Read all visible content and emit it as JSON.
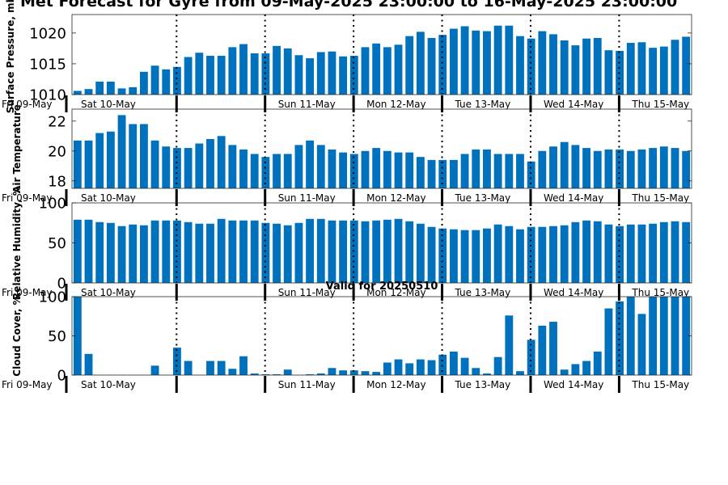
{
  "title": "Met Forecast for Gyre from 09-May-2025 23:00:00 to 16-May-2025 23:00:00",
  "bar_color": "#0072BD",
  "chart_data": [
    {
      "type": "bar",
      "ylabel": "Surface Pressure, mb",
      "ylim": [
        1010,
        1023
      ],
      "yticks": [
        1010,
        1015,
        1020
      ],
      "values": [
        1010.6,
        1010.9,
        1012.1,
        1012.1,
        1011.0,
        1011.2,
        1013.7,
        1014.7,
        1014.1,
        1014.5,
        1016.1,
        1016.8,
        1016.3,
        1016.3,
        1017.7,
        1018.2,
        1016.7,
        1016.7,
        1017.9,
        1017.5,
        1016.4,
        1015.9,
        1016.9,
        1017.0,
        1016.2,
        1016.3,
        1017.7,
        1018.3,
        1017.7,
        1018.1,
        1019.5,
        1020.2,
        1019.2,
        1019.7,
        1020.7,
        1021.1,
        1020.4,
        1020.3,
        1021.2,
        1021.2,
        1019.5,
        1019.1,
        1020.3,
        1019.8,
        1018.8,
        1018.0,
        1019.1,
        1019.2,
        1017.2,
        1017.1,
        1018.4,
        1018.5,
        1017.6,
        1017.8,
        1018.9,
        1019.4
      ],
      "day_labels": [
        "Fri 09-May",
        "Sat 10-May",
        "Sun 11-May",
        "Mon 12-May",
        "Tue 13-May",
        "Wed 14-May",
        "Thu 15-May"
      ]
    },
    {
      "type": "bar",
      "ylabel": "Air Temperature",
      "ylim": [
        17.5,
        22.8
      ],
      "yticks": [
        18,
        20,
        22
      ],
      "values": [
        20.7,
        20.7,
        21.2,
        21.3,
        22.4,
        21.8,
        21.8,
        20.7,
        20.3,
        20.2,
        20.2,
        20.5,
        20.8,
        21.0,
        20.4,
        20.1,
        19.8,
        19.6,
        19.8,
        19.8,
        20.4,
        20.7,
        20.4,
        20.1,
        19.9,
        19.8,
        20.0,
        20.2,
        20.0,
        19.9,
        19.9,
        19.6,
        19.4,
        19.4,
        19.4,
        19.8,
        20.1,
        20.1,
        19.8,
        19.8,
        19.8,
        19.3,
        20.0,
        20.3,
        20.6,
        20.4,
        20.2,
        20.0,
        20.1,
        20.1,
        20.0,
        20.1,
        20.2,
        20.3,
        20.2,
        20.0
      ],
      "day_labels": [
        "Fri 09-May",
        "Sat 10-May",
        "Sun 11-May",
        "Mon 12-May",
        "Tue 13-May",
        "Wed 14-May",
        "Thu 15-May"
      ]
    },
    {
      "type": "bar",
      "ylabel": "Relative Humidity, %",
      "ylim": [
        0,
        100
      ],
      "yticks": [
        0,
        50,
        100
      ],
      "values": [
        79,
        79,
        76,
        75,
        71,
        73,
        72,
        78,
        78,
        78,
        76,
        74,
        74,
        80,
        78,
        78,
        78,
        75,
        74,
        72,
        75,
        80,
        80,
        78,
        78,
        78,
        77,
        78,
        79,
        80,
        77,
        74,
        70,
        68,
        67,
        66,
        66,
        68,
        73,
        71,
        67,
        70,
        70,
        71,
        72,
        76,
        78,
        77,
        73,
        71,
        73,
        73,
        74,
        76,
        77,
        76
      ],
      "day_labels": [
        "Fri 09-May",
        "Sat 10-May",
        "Sun 11-May",
        "Mon 12-May",
        "Tue 13-May",
        "Wed 14-May",
        "Thu 15-May"
      ]
    },
    {
      "type": "bar",
      "title": "Valid for 20250510",
      "ylabel": "Cloud Cover, %",
      "ylim": [
        0,
        100
      ],
      "yticks": [
        0,
        50,
        100
      ],
      "values": [
        100,
        27,
        0,
        0,
        0,
        0,
        0,
        12,
        0,
        35,
        18,
        0,
        18,
        18,
        8,
        24,
        2,
        1,
        1,
        7,
        0,
        1,
        2,
        9,
        6,
        6,
        5,
        4,
        16,
        20,
        15,
        20,
        19,
        26,
        30,
        22,
        9,
        2,
        23,
        76,
        5,
        45,
        63,
        68,
        7,
        14,
        18,
        30,
        85,
        94,
        100,
        78,
        100,
        100,
        100,
        100
      ],
      "day_labels": [
        "Fri 09-May",
        "Sat 10-May",
        "Sun 11-May",
        "Mon 12-May",
        "Tue 13-May",
        "Wed 14-May",
        "Thu 15-May"
      ]
    }
  ]
}
